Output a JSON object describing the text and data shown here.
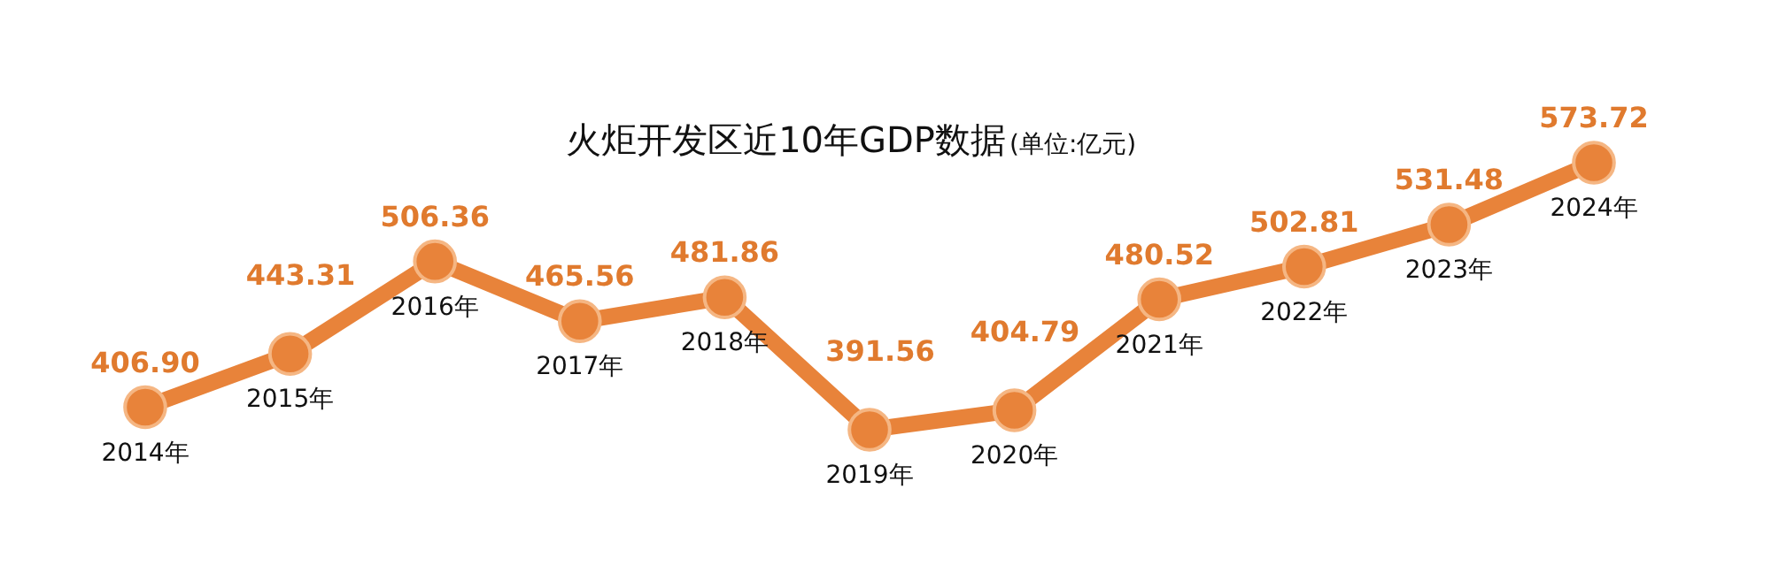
{
  "chart_data": {
    "type": "line",
    "title": "火炬开发区近10年GDP数据",
    "subtitle": "(单位:亿元)",
    "categories": [
      "2014年",
      "2015年",
      "2016年",
      "2017年",
      "2018年",
      "2019年",
      "2020年",
      "2021年",
      "2022年",
      "2023年",
      "2024年"
    ],
    "series": [
      {
        "color": "#e8833a",
        "values": [
          406.9,
          443.31,
          506.36,
          465.56,
          481.86,
          391.56,
          404.79,
          480.52,
          502.81,
          531.48,
          573.72
        ],
        "value_labels": [
          "406.90",
          "443.31",
          "506.36",
          "465.56",
          "481.86",
          "391.56",
          "404.79",
          "480.52",
          "502.81",
          "531.48",
          "573.72"
        ]
      }
    ],
    "marker": "circle"
  }
}
